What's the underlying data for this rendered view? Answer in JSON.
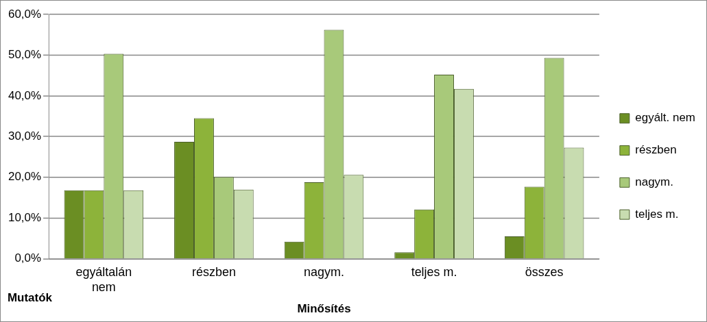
{
  "chart_data": {
    "type": "bar",
    "xlabel": "Minősítés",
    "annotations": [
      "Mutatók"
    ],
    "categories": [
      [
        "egyáltalán",
        "nem"
      ],
      "részben",
      "nagym.",
      "teljes m.",
      "összes"
    ],
    "series": [
      {
        "name": "egyált. nem",
        "color": "#6b8e23",
        "values": [
          16.8,
          28.7,
          4.2,
          1.6,
          5.5
        ]
      },
      {
        "name": "részben",
        "color": "#8db33a",
        "values": [
          16.8,
          34.5,
          18.8,
          12.1,
          17.7
        ]
      },
      {
        "name": "nagym.",
        "color": "#a8c97a",
        "values": [
          50.3,
          20.1,
          56.2,
          45.2,
          49.3
        ]
      },
      {
        "name": "teljes m.",
        "color": "#c8dcb0",
        "values": [
          16.8,
          17.0,
          20.6,
          41.7,
          27.3
        ]
      }
    ],
    "ylim": [
      0,
      60
    ],
    "yticks": [
      {
        "value": 0,
        "label": "0,0%"
      },
      {
        "value": 10,
        "label": "10,0%"
      },
      {
        "value": 20,
        "label": "20,0%"
      },
      {
        "value": 30,
        "label": "30,0%"
      },
      {
        "value": 40,
        "label": "40,0%"
      },
      {
        "value": 50,
        "label": "50,0%"
      },
      {
        "value": 60,
        "label": "60,0%"
      }
    ],
    "grid": "y",
    "legend": "right"
  }
}
